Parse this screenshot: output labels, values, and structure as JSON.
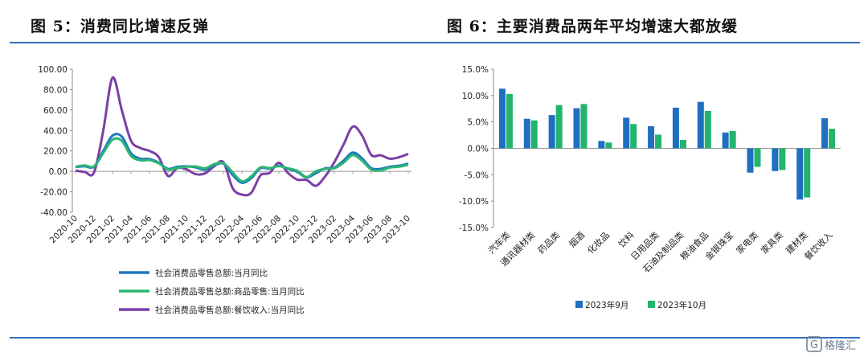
{
  "titles": {
    "left": "图 5：消费同比增速反弹",
    "right": "图 6：主要消费品两年平均增速大都放缓"
  },
  "watermark": "格隆汇",
  "colors": {
    "rule": "#2f6fb7",
    "series_blue": "#1f77c4",
    "series_green": "#2bb673",
    "series_purple": "#7b3fa6",
    "bar_sep": "#1f6fc0",
    "bar_oct": "#22b36c"
  },
  "chart_data": [
    {
      "type": "line",
      "title": "图 5：消费同比增速反弹",
      "ylim": [
        -40,
        100
      ],
      "yticks": [
        "100.00",
        "80.00",
        "60.00",
        "40.00",
        "20.00",
        "0.00",
        "-20.00",
        "-40.00"
      ],
      "x": [
        "2020-10",
        "2020-11",
        "2020-12",
        "2021-01",
        "2021-02",
        "2021-03",
        "2021-04",
        "2021-05",
        "2021-06",
        "2021-07",
        "2021-08",
        "2021-09",
        "2021-10",
        "2021-11",
        "2021-12",
        "2022-01",
        "2022-02",
        "2022-03",
        "2022-04",
        "2022-05",
        "2022-06",
        "2022-07",
        "2022-08",
        "2022-09",
        "2022-10",
        "2022-11",
        "2022-12",
        "2023-01",
        "2023-02",
        "2023-03",
        "2023-04",
        "2023-05",
        "2023-06",
        "2023-07",
        "2023-08",
        "2023-09",
        "2023-10"
      ],
      "xtick_labels": [
        "2020-10",
        "2020-12",
        "2021-02",
        "2021-04",
        "2021-06",
        "2021-08",
        "2021-10",
        "2021-12",
        "2022-02",
        "2022-04",
        "2022-06",
        "2022-08",
        "2022-10",
        "2022-12",
        "2023-02",
        "2023-04",
        "2023-06",
        "2023-08",
        "2023-10"
      ],
      "series": [
        {
          "name": "社会消费品零售总额:当月同比",
          "color": "#1f77c4",
          "values": [
            4.3,
            5.0,
            4.6,
            20.0,
            35.0,
            34.2,
            17.7,
            12.4,
            12.1,
            8.5,
            2.5,
            4.4,
            4.9,
            3.9,
            1.7,
            6.0,
            7.5,
            -3.5,
            -11.1,
            -6.7,
            3.1,
            2.7,
            5.4,
            2.5,
            -0.5,
            -5.9,
            -1.8,
            3.0,
            3.5,
            10.6,
            18.4,
            12.7,
            3.1,
            2.5,
            4.6,
            5.5,
            7.6
          ]
        },
        {
          "name": "社会消费品零售总额:商品零售:当月同比",
          "color": "#2bb673",
          "values": [
            4.6,
            5.8,
            4.9,
            18.0,
            31.0,
            30.0,
            15.1,
            10.8,
            11.0,
            7.9,
            1.8,
            3.3,
            4.6,
            4.8,
            3.0,
            7.0,
            8.0,
            -1.0,
            -9.7,
            -5.0,
            3.9,
            3.2,
            5.1,
            3.0,
            0.5,
            -5.6,
            0.1,
            2.5,
            3.0,
            8.5,
            15.9,
            10.5,
            1.7,
            1.0,
            3.7,
            4.6,
            6.5
          ]
        },
        {
          "name": "社会消费品零售总额:餐饮收入:当月同比",
          "color": "#7b3fa6",
          "values": [
            0.8,
            -0.6,
            -1.0,
            40.0,
            91.6,
            60.0,
            30.0,
            23.0,
            20.0,
            14.0,
            -4.5,
            3.1,
            2.0,
            -2.7,
            -2.0,
            5.0,
            8.9,
            -16.4,
            -22.7,
            -21.1,
            -4.0,
            -1.5,
            8.4,
            -1.7,
            -8.1,
            -8.4,
            -14.1,
            -5.0,
            9.0,
            26.3,
            43.8,
            35.1,
            16.1,
            15.8,
            12.4,
            13.8,
            17.1
          ]
        }
      ],
      "legend_position": "bottom"
    },
    {
      "type": "bar",
      "title": "图 6：主要消费品两年平均增速大都放缓",
      "ylim": [
        -15,
        15
      ],
      "yticks": [
        "15.0%",
        "10.0%",
        "5.0%",
        "0.0%",
        "-5.0%",
        "-10.0%",
        "-15.0%"
      ],
      "categories": [
        "汽车类",
        "通讯器材类",
        "药品类",
        "烟酒",
        "化妆品",
        "饮料",
        "日用品类",
        "石油及制品类",
        "粮油食品",
        "金银珠宝",
        "家电类",
        "家具类",
        "建材类",
        "餐饮收入"
      ],
      "series": [
        {
          "name": "2023年9月",
          "color": "#1f6fc0",
          "values": [
            11.3,
            5.6,
            6.3,
            7.6,
            1.4,
            5.8,
            4.2,
            7.7,
            8.8,
            3.0,
            -4.6,
            -4.3,
            -9.7,
            5.7
          ]
        },
        {
          "name": "2023年10月",
          "color": "#22b36c",
          "values": [
            10.3,
            5.3,
            8.2,
            8.4,
            1.1,
            4.6,
            2.6,
            1.6,
            7.1,
            3.3,
            -3.5,
            -4.1,
            -9.3,
            3.7
          ]
        }
      ],
      "legend_position": "bottom"
    }
  ]
}
